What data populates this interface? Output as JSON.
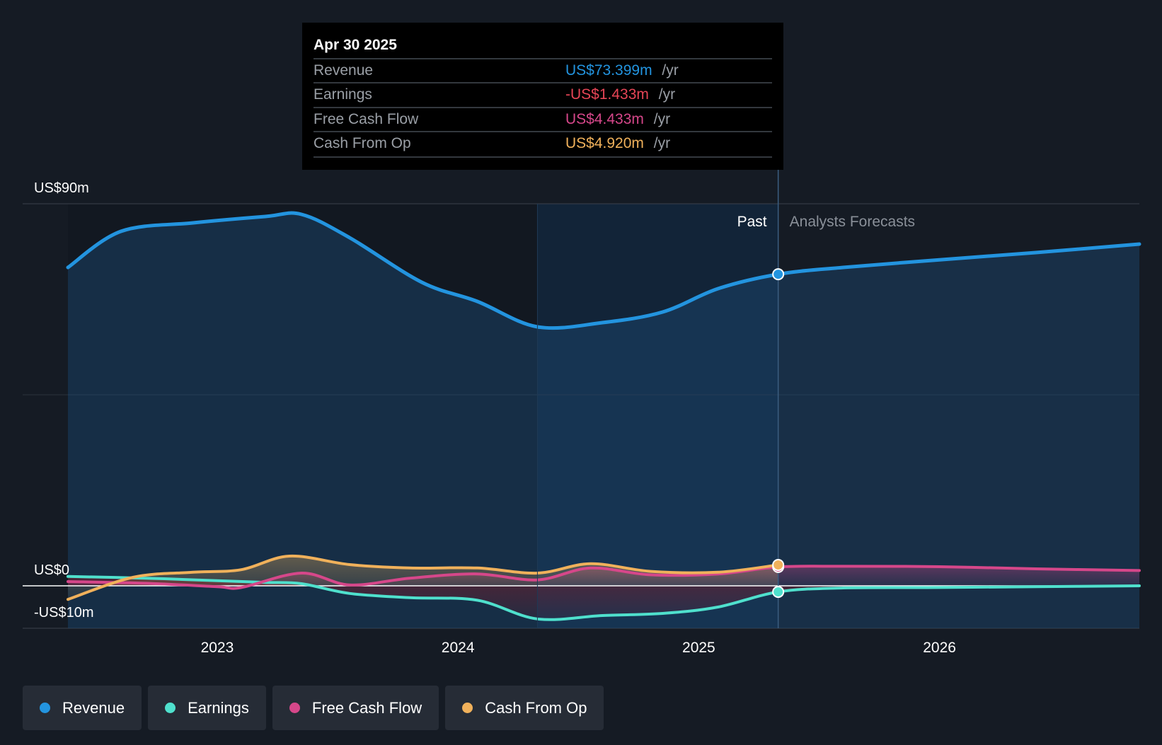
{
  "tooltip": {
    "date": "Apr 30 2025",
    "rows": [
      {
        "label": "Revenue",
        "value": "US$73.399m",
        "unit": "/yr",
        "color": "#2394df"
      },
      {
        "label": "Earnings",
        "value": "-US$1.433m",
        "unit": "/yr",
        "color": "#e64556"
      },
      {
        "label": "Free Cash Flow",
        "value": "US$4.433m",
        "unit": "/yr",
        "color": "#d6478a"
      },
      {
        "label": "Cash From Op",
        "value": "US$4.920m",
        "unit": "/yr",
        "color": "#f0b15b"
      }
    ]
  },
  "chart_data": {
    "type": "area",
    "title": "",
    "ytick_labels": [
      "US$90m",
      "US$0",
      "-US$10m"
    ],
    "ylim": [
      -10,
      90
    ],
    "xlim": [
      2022.38,
      2026.83
    ],
    "x_ticks": [
      2023,
      2024,
      2025,
      2026
    ],
    "x_tick_labels": [
      "2023",
      "2024",
      "2025",
      "2026"
    ],
    "divider_x": 2025.33,
    "highlight_start_x": 2024.33,
    "past_label": "Past",
    "forecast_label": "Analysts Forecasts",
    "series": [
      {
        "name": "Revenue",
        "color": "#2394df",
        "values_x": [
          2022.38,
          2022.6,
          2022.9,
          2023.2,
          2023.35,
          2023.55,
          2023.85,
          2024.08,
          2024.33,
          2024.6,
          2024.85,
          2025.08,
          2025.33,
          2025.6,
          2026.0,
          2026.4,
          2026.83
        ],
        "values_y": [
          75.0,
          83.5,
          85.5,
          87.0,
          87.5,
          82.0,
          71.5,
          67.0,
          61.0,
          62.0,
          64.5,
          70.0,
          73.4,
          75.0,
          76.8,
          78.5,
          80.5
        ]
      },
      {
        "name": "Earnings",
        "color": "#4fe0cd",
        "values_x": [
          2022.38,
          2022.7,
          2023.0,
          2023.2,
          2023.35,
          2023.55,
          2023.8,
          2024.08,
          2024.33,
          2024.6,
          2024.85,
          2025.08,
          2025.33,
          2025.6,
          2026.0,
          2026.4,
          2026.83
        ],
        "values_y": [
          2.2,
          1.8,
          1.2,
          0.8,
          0.5,
          -1.8,
          -2.8,
          -3.4,
          -7.8,
          -7.0,
          -6.5,
          -5.0,
          -1.43,
          -0.5,
          -0.4,
          -0.2,
          0.0
        ]
      },
      {
        "name": "Free Cash Flow",
        "color": "#d6478a",
        "values_x": [
          2022.38,
          2022.7,
          2023.0,
          2023.1,
          2023.35,
          2023.55,
          2023.8,
          2024.08,
          2024.33,
          2024.55,
          2024.8,
          2025.08,
          2025.33,
          2025.6,
          2026.0,
          2026.4,
          2026.83
        ],
        "values_y": [
          1.0,
          0.6,
          -0.2,
          -0.4,
          3.0,
          0.2,
          1.8,
          2.8,
          1.4,
          4.2,
          2.6,
          2.8,
          4.43,
          4.6,
          4.5,
          4.0,
          3.6
        ]
      },
      {
        "name": "Cash From Op",
        "color": "#f0b15b",
        "values_x": [
          2022.38,
          2022.65,
          2022.9,
          2023.1,
          2023.3,
          2023.55,
          2023.8,
          2024.08,
          2024.33,
          2024.55,
          2024.8,
          2025.08,
          2025.33
        ],
        "values_y": [
          -3.2,
          2.0,
          3.2,
          3.8,
          7.0,
          5.0,
          4.2,
          4.2,
          3.0,
          5.2,
          3.4,
          3.2,
          4.92
        ]
      }
    ]
  },
  "legend": {
    "items": [
      {
        "label": "Revenue",
        "color": "#2394df"
      },
      {
        "label": "Earnings",
        "color": "#4fe0cd"
      },
      {
        "label": "Free Cash Flow",
        "color": "#d6478a"
      },
      {
        "label": "Cash From Op",
        "color": "#f0b15b"
      }
    ]
  }
}
